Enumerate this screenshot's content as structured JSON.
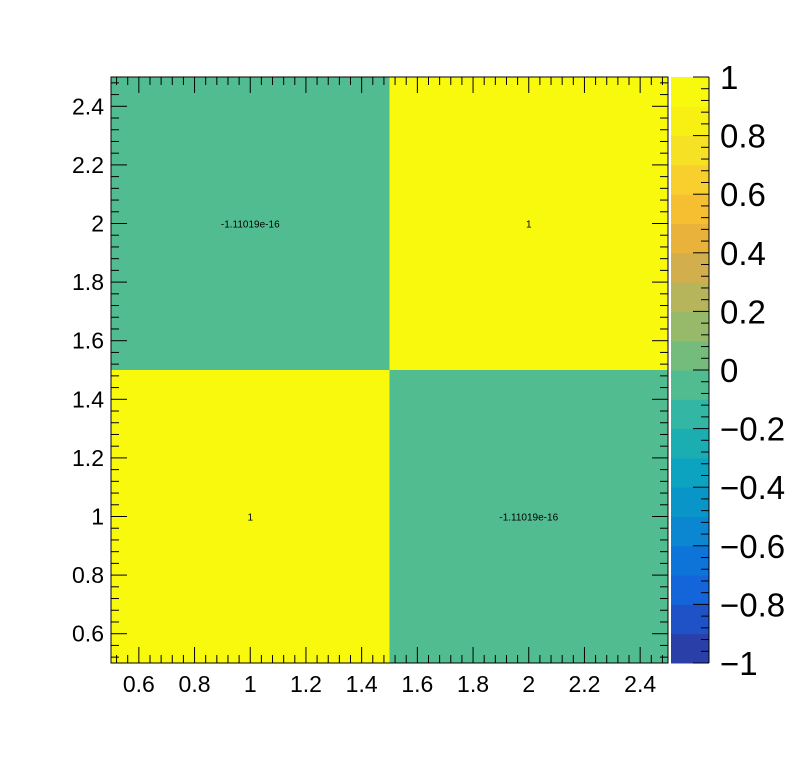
{
  "chart_data": {
    "type": "heatmap",
    "title": "",
    "xlabel": "",
    "ylabel": "",
    "x_bins": [
      1,
      2
    ],
    "y_bins": [
      1,
      2
    ],
    "xlim": [
      0.5,
      2.5
    ],
    "ylim": [
      0.5,
      2.5
    ],
    "zlim": [
      -1,
      1
    ],
    "cells": [
      {
        "x": 1,
        "y": 1,
        "value": 1,
        "label": "1"
      },
      {
        "x": 2,
        "y": 1,
        "value": -1.11019e-16,
        "label": "-1.11019e-16"
      },
      {
        "x": 1,
        "y": 2,
        "value": -1.11019e-16,
        "label": "-1.11019e-16"
      },
      {
        "x": 2,
        "y": 2,
        "value": 1,
        "label": "1"
      }
    ],
    "x_tick_labels": [
      "0.6",
      "0.8",
      "1",
      "1.2",
      "1.4",
      "1.6",
      "1.8",
      "2",
      "2.2",
      "2.4"
    ],
    "y_tick_labels": [
      "0.6",
      "0.8",
      "1",
      "1.2",
      "1.4",
      "1.6",
      "1.8",
      "2",
      "2.2",
      "2.4"
    ],
    "palette_tick_labels": [
      "−1",
      "−0.8",
      "−0.6",
      "−0.4",
      "−0.2",
      "0",
      "0.2",
      "0.4",
      "0.6",
      "0.8",
      "1"
    ],
    "palette_colors": [
      "#2a3fa8",
      "#1f52c6",
      "#1465d9",
      "#0d75da",
      "#0b86d0",
      "#0a95c8",
      "#0ba3bf",
      "#1aaeb3",
      "#33b7a4",
      "#52bc91",
      "#74bc7c",
      "#97ba6a",
      "#b6b55c",
      "#d2ae4d",
      "#e8b23b",
      "#f6bf32",
      "#f8cf2d",
      "#f6e124",
      "#f7f012",
      "#f9f90e"
    ],
    "grid": false,
    "legend": "color palette at right"
  }
}
